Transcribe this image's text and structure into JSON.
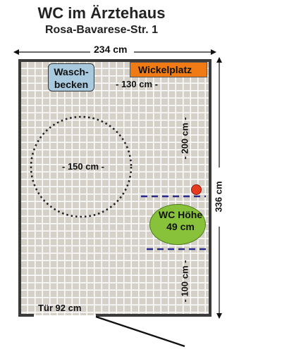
{
  "header": {
    "title": "WC im Ärztehaus",
    "address": "Rosa-Bavarese-Str.  1"
  },
  "dimensions": {
    "width": "234 cm",
    "height": "336 cm",
    "changing_area_width": "- 130 cm -",
    "turning_circle": "- 150 cm -",
    "wall_to_wc_upper": "- 200 cm -",
    "wall_to_wc_lower": "- 100 cm -"
  },
  "fixtures": {
    "sink_line1": "Wasch-",
    "sink_line2": "becken",
    "changing_table": "Wickelplatz",
    "wc_line1": "WC Höhe",
    "wc_line2": "49 cm",
    "door": "Tür 92 cm"
  },
  "colors": {
    "floor": "#d5d1c9",
    "sink": "#a9c9df",
    "changing_table": "#f07b14",
    "wc": "#87c23a",
    "grab_rail_lines": "#2a2a8a",
    "emergency_button": "#e53b1f"
  }
}
